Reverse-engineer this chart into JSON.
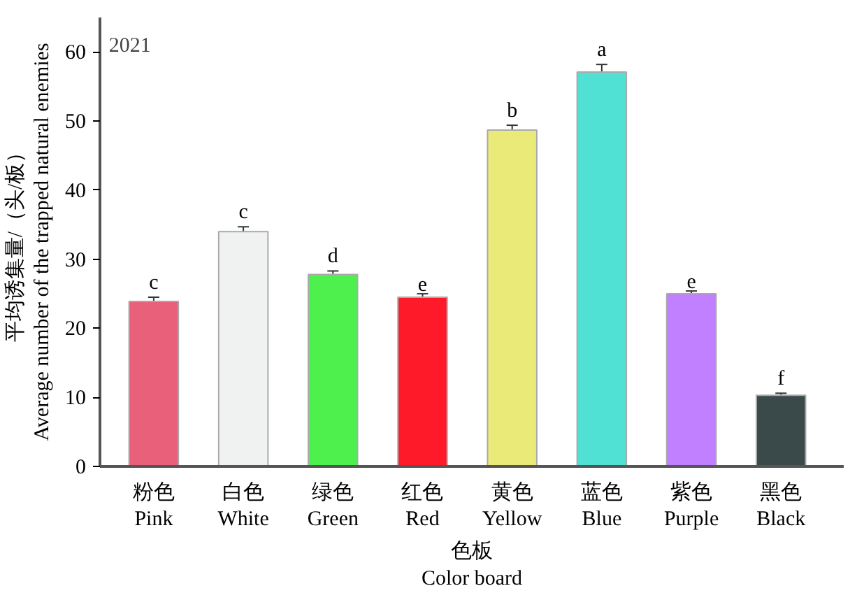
{
  "chart_data": {
    "type": "bar",
    "categories": [
      "粉色\nPink",
      "白色\nWhite",
      "绿色\nGreen",
      "红色\nRed",
      "黄色\nYellow",
      "蓝色\nBlue",
      "紫色\nPurple",
      "黑色\nBlack"
    ],
    "values": [
      23.9,
      34.0,
      27.8,
      24.5,
      48.7,
      57.1,
      25.0,
      10.3
    ],
    "errors": [
      0.6,
      0.7,
      0.5,
      0.5,
      0.7,
      1.1,
      0.4,
      0.3
    ],
    "colors": [
      "#e8607a",
      "#f0f2f2",
      "#4ef04e",
      "#ff1a2a",
      "#eaea78",
      "#50e0d4",
      "#c080ff",
      "#3a4a4a"
    ],
    "xlabel": "色板\nColor board",
    "ylabel": "平均诱集量/（头/板）\nAverage number of the trapped natural enemies",
    "ylim": [
      0,
      65
    ],
    "yticks": [
      0,
      10,
      20,
      30,
      40,
      50,
      60
    ],
    "grid": false,
    "annotations": [
      "2021",
      {
        "text": "c",
        "x": "粉色\nPink",
        "y": 24.5
      },
      {
        "text": "c",
        "x": "白色\nWhite",
        "y": 34.7
      },
      {
        "text": "d",
        "x": "绿色\nGreen",
        "y": 28.3
      },
      {
        "text": "e",
        "x": "红色\nRed",
        "y": 25.0
      },
      {
        "text": "b",
        "x": "黄色\nYellow",
        "y": 49.4
      },
      {
        "text": "a",
        "x": "蓝色\nBlue",
        "y": 58.2
      },
      {
        "text": "e",
        "x": "紫色\nPurple",
        "y": 25.4
      },
      {
        "text": "f",
        "x": "黑色\nBlack",
        "y": 10.6
      }
    ]
  }
}
